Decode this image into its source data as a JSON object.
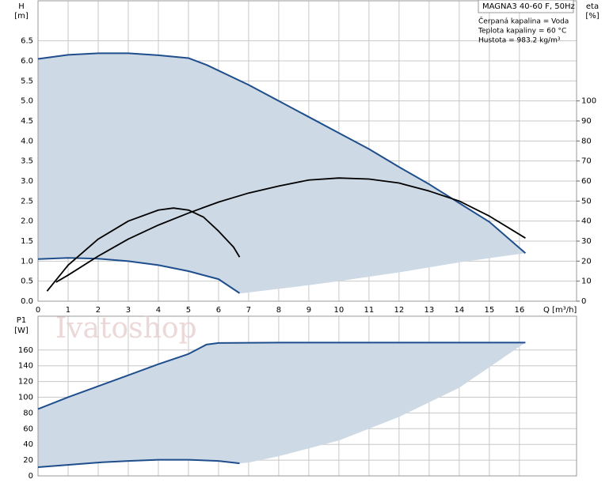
{
  "chart_data": [
    {
      "type": "line",
      "y_label": "H",
      "y_unit": "[m]",
      "y2_label": "eta",
      "y2_unit": "[%]",
      "x_label": "Q [m³/h]",
      "xlim": [
        0,
        17.9
      ],
      "xticks": [
        0,
        1,
        2,
        3,
        4,
        5,
        6,
        7,
        8,
        9,
        10,
        11,
        12,
        13,
        14,
        15,
        16
      ],
      "ylim": [
        0,
        7.5
      ],
      "yticks": [
        {
          "value": 0,
          "label": "0.0"
        },
        0.5,
        {
          "value": 1,
          "label": "1.0"
        },
        1.5,
        {
          "value": 2,
          "label": "2.0"
        },
        2.5,
        {
          "value": 3,
          "label": "3.0"
        },
        3.5,
        {
          "value": 4,
          "label": "4.0"
        },
        4.5,
        {
          "value": 5,
          "label": "5.0"
        },
        5.5,
        {
          "value": 6,
          "label": "6.0"
        },
        6.5
      ],
      "y2lim": [
        0,
        150
      ],
      "y2ticks": [
        0,
        10,
        20,
        30,
        40,
        50,
        60,
        70,
        80,
        90,
        100
      ],
      "grid": true,
      "area": {
        "color": "#cdd9e5",
        "x": [
          0,
          1,
          2,
          3,
          4,
          5,
          5.6,
          7,
          8,
          9,
          10,
          11,
          12,
          13,
          14,
          15,
          16.2,
          14,
          12,
          10,
          9,
          6.8,
          6.7,
          6,
          5,
          4,
          3,
          2,
          1,
          0
        ],
        "values": [
          6.05,
          6.15,
          6.19,
          6.19,
          6.14,
          6.07,
          5.9,
          5.4,
          5.0,
          4.6,
          4.2,
          3.8,
          3.35,
          2.92,
          2.45,
          1.98,
          1.2,
          0.97,
          0.72,
          0.5,
          0.4,
          0.2,
          0.2,
          0.55,
          0.75,
          0.9,
          1.0,
          1.06,
          1.08,
          1.05
        ]
      },
      "series": [
        {
          "color": "#1f4e8c",
          "x": [
            0,
            1,
            2,
            3,
            4,
            5,
            5.6,
            7,
            8,
            9,
            10,
            11,
            12,
            13,
            14,
            15,
            16.2
          ],
          "values": [
            6.05,
            6.15,
            6.19,
            6.19,
            6.14,
            6.07,
            5.9,
            5.4,
            5.0,
            4.6,
            4.2,
            3.8,
            3.35,
            2.92,
            2.45,
            1.98,
            1.2
          ]
        },
        {
          "color": "#1f4e8c",
          "x": [
            0,
            1,
            2,
            3,
            4,
            5,
            6,
            6.7
          ],
          "values": [
            1.05,
            1.08,
            1.06,
            1.0,
            0.9,
            0.75,
            0.55,
            0.2
          ]
        },
        {
          "color": "#000000",
          "axis": "y2",
          "x": [
            0.6,
            1,
            2,
            3,
            4,
            5,
            6,
            7,
            8,
            9,
            10,
            11,
            12,
            13,
            14,
            15,
            16.2
          ],
          "values": [
            9.5,
            13,
            22.5,
            31,
            38,
            44,
            49.5,
            54,
            57.5,
            60.5,
            61.5,
            61,
            59,
            55,
            50,
            42.5,
            31.5
          ]
        },
        {
          "color": "#000000",
          "axis": "y2",
          "x": [
            0.3,
            1,
            2,
            3,
            4,
            4.5,
            5,
            5.5,
            6,
            6.5,
            6.7
          ],
          "values": [
            5,
            18,
            31,
            40,
            45.5,
            46.5,
            45.5,
            42,
            35,
            27,
            22
          ]
        }
      ]
    },
    {
      "type": "line",
      "y_label": "P1",
      "y_unit": "[W]",
      "xlim": [
        0,
        17.9
      ],
      "ylim": [
        0,
        203
      ],
      "yticks": [
        0,
        20,
        40,
        60,
        80,
        100,
        120,
        140,
        160
      ],
      "grid": true,
      "area": {
        "color": "#cdd9e5",
        "x": [
          0,
          1,
          2,
          3,
          4,
          5,
          5.6,
          6,
          8,
          16.2,
          14,
          12,
          10,
          8,
          7,
          6.7,
          6,
          5,
          4,
          3,
          2,
          0
        ],
        "values": [
          85,
          100,
          114,
          128,
          142,
          155,
          167,
          169,
          169.5,
          169.5,
          112,
          75,
          45,
          25,
          17,
          16,
          19,
          20.5,
          20.5,
          19,
          17,
          11
        ]
      },
      "series": [
        {
          "color": "#1f4e8c",
          "x": [
            0,
            1,
            2,
            3,
            4,
            5,
            5.6,
            6,
            8,
            16.2
          ],
          "values": [
            85,
            100,
            114,
            128,
            142,
            155,
            167,
            169,
            169.5,
            169.5
          ]
        },
        {
          "color": "#1f4e8c",
          "x": [
            0,
            2,
            3,
            4,
            5,
            6,
            6.7
          ],
          "values": [
            11,
            17,
            19,
            20.5,
            20.5,
            19,
            16
          ]
        }
      ]
    }
  ],
  "info": {
    "title": "MAGNA3 40-60 F, 50Hz",
    "lines": [
      "Čerpaná kapalina = Voda",
      "Teplota kapaliny = 60 °C",
      "Hustota = 983.2 kg/m³"
    ]
  },
  "watermark": "Ivatoshop"
}
